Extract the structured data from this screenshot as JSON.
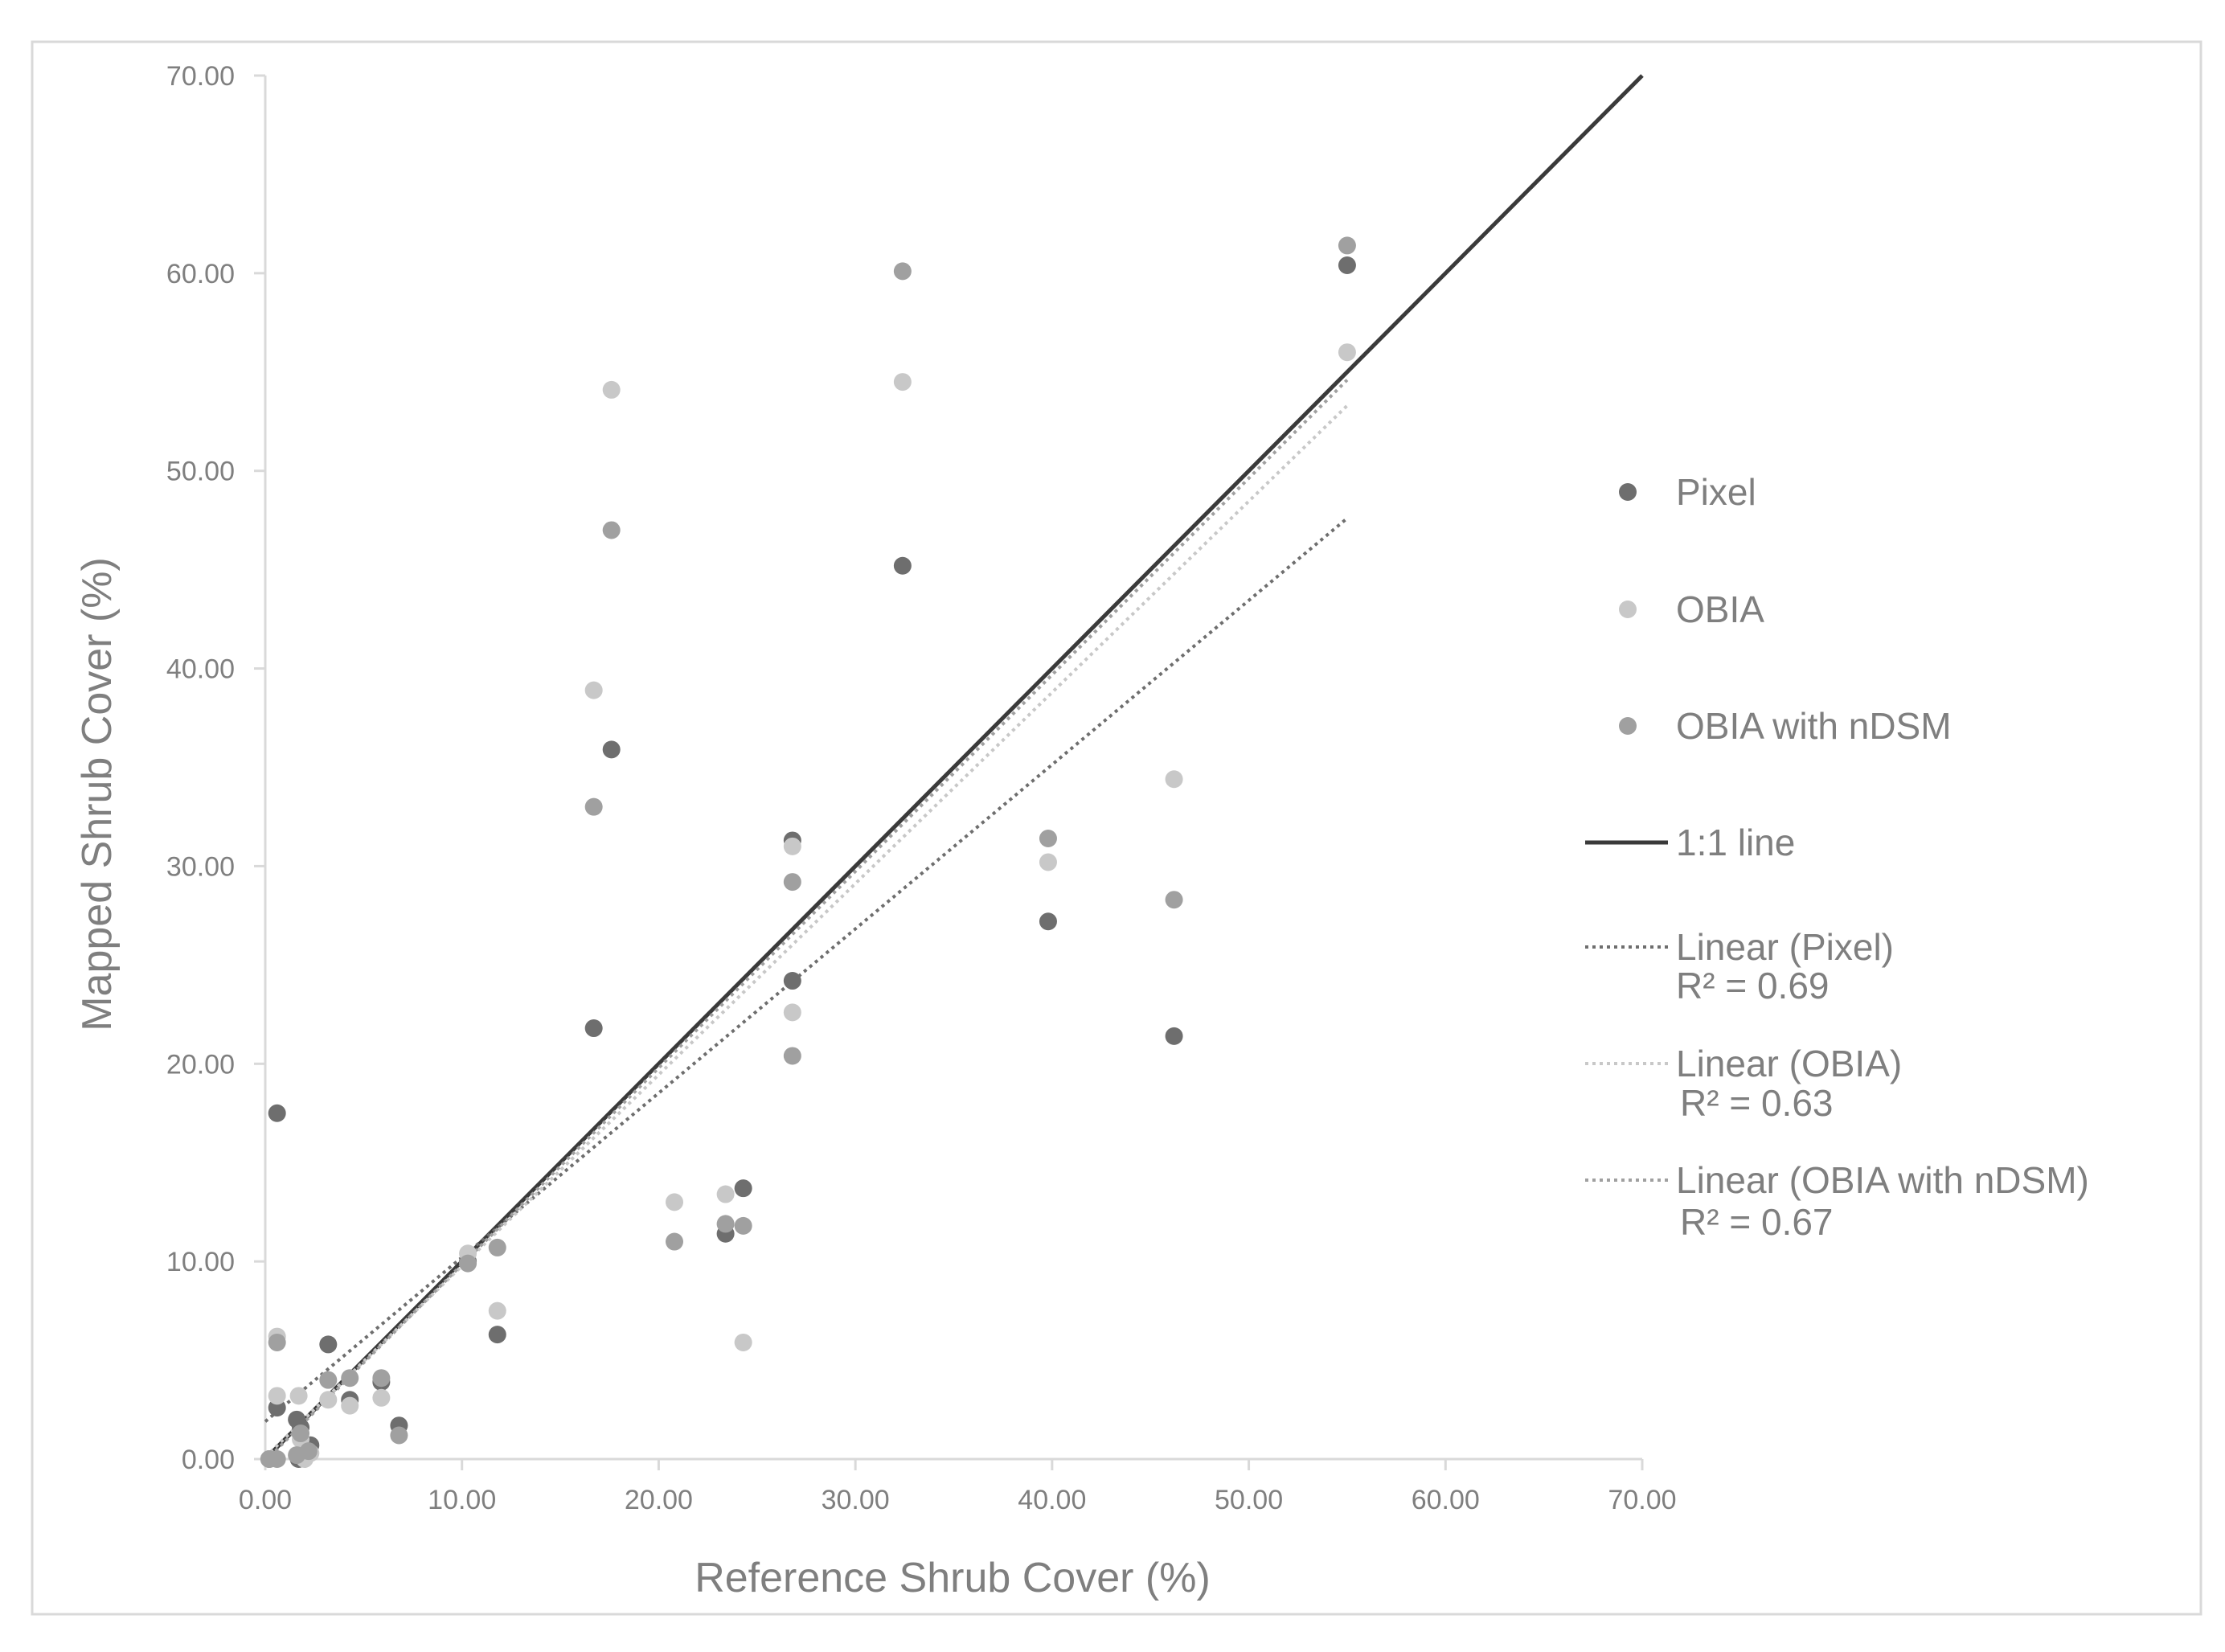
{
  "chart_data": {
    "type": "scatter",
    "xlabel": "Reference Shrub Cover (%)",
    "ylabel": "Mapped Shrub Cover (%)",
    "xlim": [
      0,
      70
    ],
    "ylim": [
      0,
      70
    ],
    "xticks": [
      "0.00",
      "10.00",
      "20.00",
      "30.00",
      "40.00",
      "50.00",
      "60.00",
      "70.00"
    ],
    "yticks": [
      "0.00",
      "10.00",
      "20.00",
      "30.00",
      "40.00",
      "50.00",
      "60.00",
      "70.00"
    ],
    "grid": false,
    "legend_position": "right",
    "series": [
      {
        "name": "Pixel",
        "color": "#6e6e6e",
        "points": [
          [
            0.6,
            17.5
          ],
          [
            0.6,
            2.6
          ],
          [
            0.2,
            0.0
          ],
          [
            1.6,
            2.0
          ],
          [
            1.8,
            1.6
          ],
          [
            2.3,
            0.7
          ],
          [
            1.7,
            0.0
          ],
          [
            3.2,
            5.8
          ],
          [
            4.3,
            3.0
          ],
          [
            5.9,
            3.9
          ],
          [
            6.8,
            1.7
          ],
          [
            10.3,
            10.0
          ],
          [
            11.8,
            6.3
          ],
          [
            16.7,
            21.8
          ],
          [
            17.6,
            35.9
          ],
          [
            23.4,
            11.4
          ],
          [
            24.3,
            13.7
          ],
          [
            26.8,
            31.3
          ],
          [
            26.8,
            24.2
          ],
          [
            32.4,
            45.2
          ],
          [
            39.8,
            27.2
          ],
          [
            46.2,
            21.4
          ],
          [
            55.0,
            60.4
          ]
        ]
      },
      {
        "name": "OBIA",
        "color": "#c8c8c8",
        "points": [
          [
            0.6,
            6.2
          ],
          [
            0.6,
            3.2
          ],
          [
            0.2,
            0.0
          ],
          [
            1.7,
            3.2
          ],
          [
            1.8,
            1.0
          ],
          [
            2.3,
            0.3
          ],
          [
            2.0,
            0.0
          ],
          [
            3.2,
            3.0
          ],
          [
            4.3,
            2.7
          ],
          [
            5.9,
            3.1
          ],
          [
            10.3,
            10.4
          ],
          [
            11.8,
            7.5
          ],
          [
            16.7,
            38.9
          ],
          [
            17.6,
            54.1
          ],
          [
            20.8,
            13.0
          ],
          [
            23.4,
            13.4
          ],
          [
            24.3,
            5.9
          ],
          [
            26.8,
            31.0
          ],
          [
            26.8,
            22.6
          ],
          [
            32.4,
            54.5
          ],
          [
            39.8,
            30.2
          ],
          [
            46.2,
            34.4
          ],
          [
            55.0,
            56.0
          ]
        ]
      },
      {
        "name": "OBIA with nDSM",
        "color": "#a0a0a0",
        "points": [
          [
            0.6,
            5.9
          ],
          [
            0.2,
            0.0
          ],
          [
            0.6,
            0.0
          ],
          [
            1.8,
            1.3
          ],
          [
            1.6,
            0.2
          ],
          [
            2.2,
            0.4
          ],
          [
            3.2,
            4.0
          ],
          [
            4.3,
            4.1
          ],
          [
            5.9,
            4.1
          ],
          [
            6.8,
            1.2
          ],
          [
            10.3,
            9.9
          ],
          [
            11.8,
            10.7
          ],
          [
            16.7,
            33.0
          ],
          [
            17.6,
            47.0
          ],
          [
            20.8,
            11.0
          ],
          [
            23.4,
            11.9
          ],
          [
            24.3,
            11.8
          ],
          [
            26.8,
            29.2
          ],
          [
            26.8,
            20.4
          ],
          [
            32.4,
            60.1
          ],
          [
            39.8,
            31.4
          ],
          [
            46.2,
            28.3
          ],
          [
            55.0,
            61.4
          ]
        ]
      }
    ],
    "lines": [
      {
        "name": "1:1 line",
        "style": "solid",
        "color": "#3a3a3a",
        "x": [
          0,
          70
        ],
        "y": [
          0,
          70
        ]
      },
      {
        "name": "Linear (Pixel)",
        "r2_label": "R² = 0.69",
        "style": "dotted",
        "color": "#6e6e6e",
        "x": [
          0,
          55
        ],
        "y": [
          1.9,
          47.6
        ]
      },
      {
        "name": "Linear (OBIA)",
        "r2_label": "R² = 0.63",
        "style": "dotted",
        "color": "#c8c8c8",
        "x": [
          0,
          55
        ],
        "y": [
          0.1,
          53.3
        ]
      },
      {
        "name": "Linear (OBIA with nDSM)",
        "r2_label": "R² = 0.67",
        "style": "dotted",
        "color": "#a0a0a0",
        "x": [
          0,
          55
        ],
        "y": [
          -0.1,
          54.6
        ]
      }
    ]
  }
}
